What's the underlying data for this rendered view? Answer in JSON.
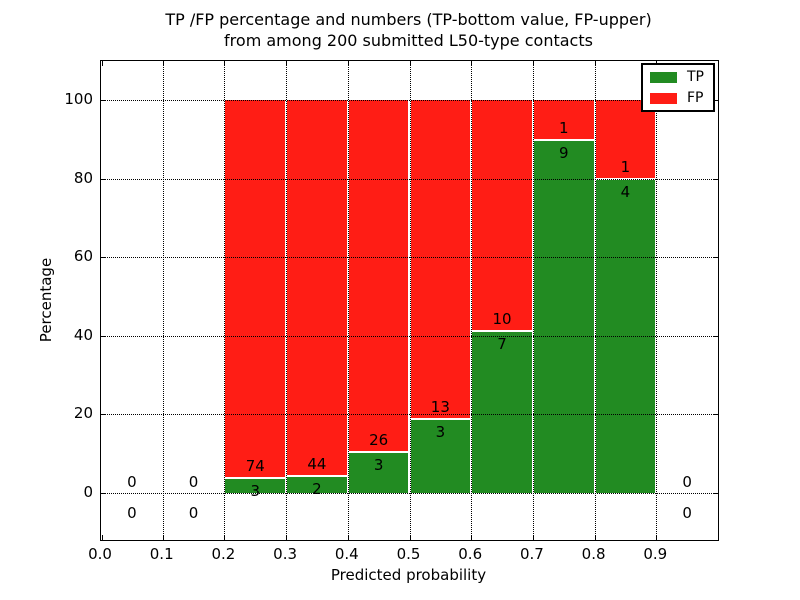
{
  "title": {
    "line1": "TP /FP percentage and numbers (TP-bottom value, FP-upper)",
    "line2": "from among 200 submitted L50-type contacts"
  },
  "chart_data": {
    "type": "bar",
    "stacked": true,
    "title": "TP /FP percentage and numbers (TP-bottom value, FP-upper) from among 200 submitted L50-type contacts",
    "xlabel": "Predicted probability",
    "ylabel": "Percentage",
    "xlim": [
      0.0,
      1.0
    ],
    "ylim": [
      -12,
      110
    ],
    "grid": true,
    "x_tick_labels": [
      "0.0",
      "0.1",
      "0.2",
      "0.3",
      "0.4",
      "0.5",
      "0.6",
      "0.7",
      "0.8",
      "0.9"
    ],
    "x_tick_values": [
      0.0,
      0.1,
      0.2,
      0.3,
      0.4,
      0.5,
      0.6,
      0.7,
      0.8,
      0.9
    ],
    "y_tick_labels": [
      "0",
      "20",
      "40",
      "60",
      "80",
      "100"
    ],
    "y_tick_values": [
      0,
      20,
      40,
      60,
      80,
      100
    ],
    "series": [
      {
        "name": "TP",
        "values": [
          0,
          0,
          3,
          2,
          3,
          3,
          7,
          9,
          4,
          0
        ]
      },
      {
        "name": "FP",
        "values": [
          0,
          0,
          74,
          44,
          26,
          13,
          10,
          1,
          1,
          0
        ]
      }
    ],
    "bins": [
      {
        "range": [
          0.0,
          0.1
        ],
        "tp": 0,
        "fp": 0,
        "tp_pct": null
      },
      {
        "range": [
          0.1,
          0.2
        ],
        "tp": 0,
        "fp": 0,
        "tp_pct": null
      },
      {
        "range": [
          0.2,
          0.3
        ],
        "tp": 3,
        "fp": 74,
        "tp_pct": 3.9
      },
      {
        "range": [
          0.3,
          0.4
        ],
        "tp": 2,
        "fp": 44,
        "tp_pct": 4.3
      },
      {
        "range": [
          0.4,
          0.5
        ],
        "tp": 3,
        "fp": 26,
        "tp_pct": 10.3
      },
      {
        "range": [
          0.5,
          0.6
        ],
        "tp": 3,
        "fp": 13,
        "tp_pct": 18.8
      },
      {
        "range": [
          0.6,
          0.7
        ],
        "tp": 7,
        "fp": 10,
        "tp_pct": 41.2
      },
      {
        "range": [
          0.7,
          0.8
        ],
        "tp": 9,
        "fp": 1,
        "tp_pct": 90.0
      },
      {
        "range": [
          0.8,
          0.9
        ],
        "tp": 4,
        "fp": 1,
        "tp_pct": 80.0
      },
      {
        "range": [
          0.9,
          1.0
        ],
        "tp": 0,
        "fp": 0,
        "tp_pct": null
      }
    ],
    "legend": {
      "position": "upper right",
      "entries": [
        {
          "label": "TP",
          "color": "#228b22"
        },
        {
          "label": "FP",
          "color": "#ff1d15"
        }
      ]
    }
  },
  "colors": {
    "tp": "#228b22",
    "fp": "#ff1d15",
    "background": "#ffffff",
    "grid": "#000000",
    "spine": "#000000"
  }
}
